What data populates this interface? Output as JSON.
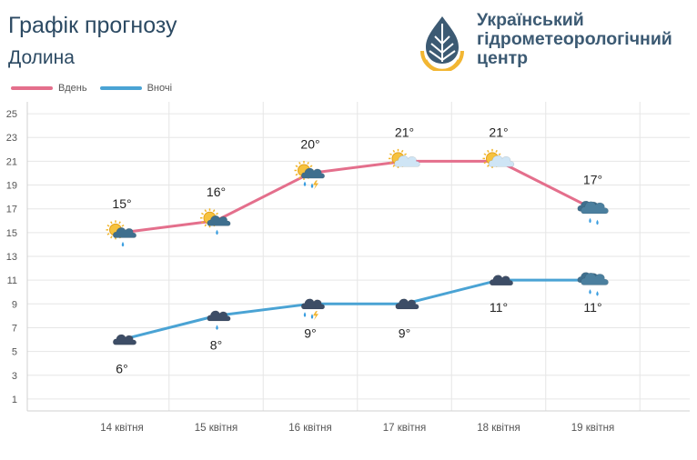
{
  "header": {
    "title": "Графік прогнозу",
    "location": "Долина",
    "org_lines": [
      "Український",
      "гідрометеорологічний",
      "центр"
    ]
  },
  "chart_data": {
    "type": "line",
    "categories": [
      "14 квітня",
      "15 квітня",
      "16 квітня",
      "17 квітня",
      "18 квітня",
      "19 квітня"
    ],
    "series": [
      {
        "name": "Вдень",
        "color": "#e46f8c",
        "values": [
          15,
          16,
          20,
          21,
          21,
          17
        ],
        "labels": [
          "15°",
          "16°",
          "20°",
          "21°",
          "21°",
          "17°"
        ],
        "icons": [
          "sun-cloud-rain-icon",
          "sun-cloud-rain-icon",
          "sun-cloud-thunder-rain-icon",
          "sun-cloud-icon",
          "sun-cloud-icon",
          "cloud-rain-icon"
        ]
      },
      {
        "name": "Вночі",
        "color": "#4aa3d4",
        "values": [
          6,
          8,
          9,
          9,
          11,
          11
        ],
        "labels": [
          "6°",
          "8°",
          "9°",
          "9°",
          "11°",
          "11°"
        ],
        "icons": [
          "moon-cloud-icon",
          "moon-cloud-rain-icon",
          "moon-cloud-thunder-rain-icon",
          "moon-cloud-icon",
          "moon-cloud-icon",
          "cloud-rain-icon"
        ]
      }
    ],
    "y_ticks": [
      1,
      3,
      5,
      7,
      9,
      11,
      13,
      15,
      17,
      19,
      21,
      23,
      25
    ],
    "ylim": [
      0,
      26
    ],
    "grid": true,
    "legend_position": "top-left"
  }
}
